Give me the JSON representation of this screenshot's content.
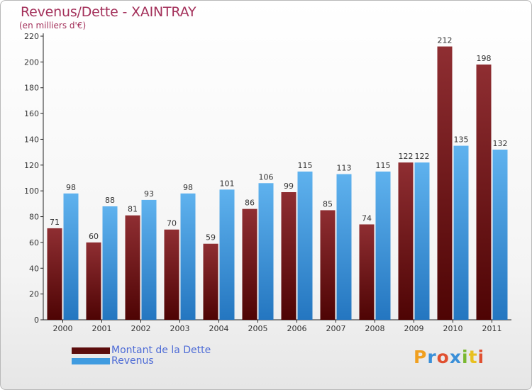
{
  "header": {
    "title": "Revenus/Dette - XAINTRAY",
    "subtitle": "(en milliers d'€)"
  },
  "chart_data": {
    "type": "bar",
    "title": "Revenus/Dette - XAINTRAY",
    "ylabel": "(en milliers d'€)",
    "xlabel": "",
    "categories": [
      "2000",
      "2001",
      "2002",
      "2003",
      "2004",
      "2005",
      "2006",
      "2007",
      "2008",
      "2009",
      "2010",
      "2011"
    ],
    "series": [
      {
        "name": "Montant de la Dette",
        "color": "#7a1c1c",
        "values": [
          71,
          60,
          81,
          70,
          59,
          86,
          99,
          85,
          74,
          122,
          212,
          198
        ]
      },
      {
        "name": "Revenus",
        "color": "#3f9be0",
        "values": [
          98,
          88,
          93,
          98,
          101,
          106,
          115,
          113,
          115,
          122,
          135,
          132
        ]
      }
    ],
    "ylim": [
      0,
      220
    ],
    "yticks": [
      0,
      20,
      40,
      60,
      80,
      100,
      120,
      140,
      160,
      180,
      200,
      220
    ],
    "grid": false,
    "legend_position": "bottom-left"
  },
  "legend": {
    "items": [
      {
        "label": "Montant de la Dette",
        "color": "#5c0d0d"
      },
      {
        "label": "Revenus",
        "color": "#3f9be0"
      }
    ]
  },
  "logo": {
    "text": "Proxiti",
    "letters": [
      {
        "ch": "P",
        "color": "#f0a020"
      },
      {
        "ch": "r",
        "color": "#3a8fd8"
      },
      {
        "ch": "o",
        "color": "#e05030"
      },
      {
        "ch": "x",
        "color": "#3a8fd8"
      },
      {
        "ch": "i",
        "color": "#7ab830"
      },
      {
        "ch": "t",
        "color": "#e8c020"
      },
      {
        "ch": "i",
        "color": "#e05030"
      }
    ]
  }
}
